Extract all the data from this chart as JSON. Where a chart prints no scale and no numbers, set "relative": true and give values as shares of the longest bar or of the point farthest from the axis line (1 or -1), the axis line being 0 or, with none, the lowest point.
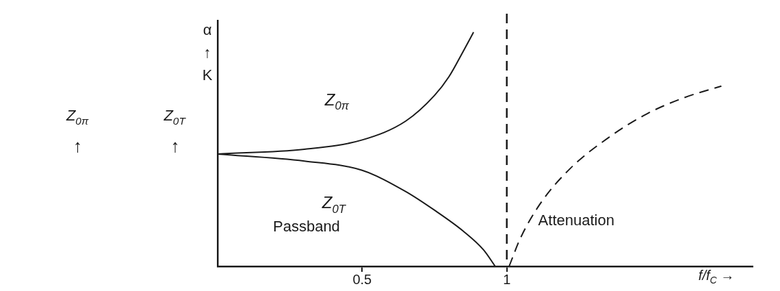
{
  "chart_data": {
    "type": "line",
    "relative": true,
    "xlabel": "f/f$_{C}$ →",
    "ylabel": "α ↑ K",
    "xlim": [
      0,
      1.85
    ],
    "xticks": [
      0.5,
      1
    ],
    "grid": false,
    "legend": false,
    "marker": "none",
    "series": [
      {
        "name": "Z$_{0π}$",
        "color": "#1a1a1a",
        "line_style": "solid",
        "x": [
          0,
          0.3,
          0.5,
          0.65,
          0.75,
          0.8,
          0.85,
          0.885
        ],
        "values": [
          0.48,
          0.5,
          0.54,
          0.62,
          0.73,
          0.81,
          0.92,
          1
        ]
      },
      {
        "name": "Z$_{0T}$",
        "color": "#1a1a1a",
        "line_style": "solid",
        "x": [
          0,
          0.3,
          0.5,
          0.65,
          0.75,
          0.85,
          0.92,
          0.96
        ],
        "values": [
          0.48,
          0.45,
          0.41,
          0.32,
          0.24,
          0.15,
          0.07,
          0
        ]
      },
      {
        "color": "#1a1a1a",
        "line_style": "dashed",
        "x": [
          1.008,
          1.047,
          1.117,
          1.221,
          1.352,
          1.482,
          1.612,
          1.742
        ],
        "values": [
          0,
          0.12,
          0.27,
          0.42,
          0.55,
          0.65,
          0.72,
          0.77
        ]
      }
    ],
    "ref_lines": [
      {
        "axis": "x",
        "value": 1,
        "line_style": "dashed",
        "color": "#1a1a1a"
      }
    ],
    "annotations": [
      "Z$_{0π}$ ↑",
      "Z$_{0T}$ ↑",
      "Passband",
      "Attenuation"
    ]
  }
}
